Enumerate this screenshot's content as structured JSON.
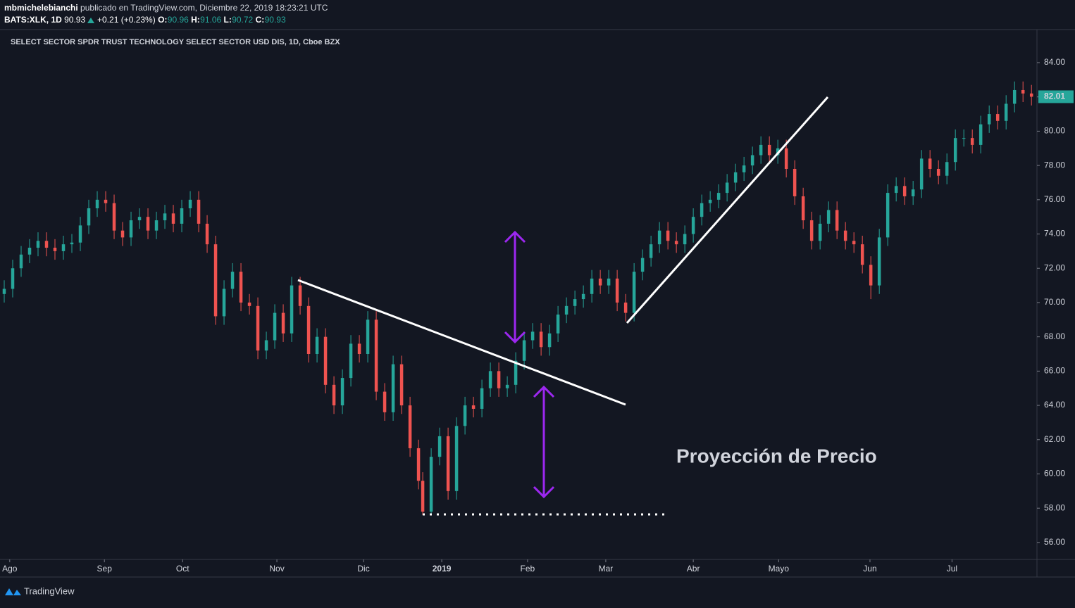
{
  "header": {
    "author": "mbmichelebianchi",
    "published": "publicado en TradingView.com, Diciembre 22, 2019 18:23:21 UTC",
    "symbol": "BATS:XLK, 1D",
    "price": "90.93",
    "change": "+0.21 (+0.23%)",
    "ohlc": [
      {
        "label": "O:",
        "value": "90.96"
      },
      {
        "label": "H:",
        "value": "91.06"
      },
      {
        "label": "L:",
        "value": "90.72"
      },
      {
        "label": "C:",
        "value": "90.93"
      }
    ]
  },
  "chart_data": {
    "type": "candlestick",
    "title": "SELECT SECTOR SPDR TRUST TECHNOLOGY SELECT SECTOR USD DIS, 1D, Cboe BZX",
    "annotation": "Proyección de Precio",
    "last_price": 82.01,
    "up_color": "#26a69a",
    "down_color": "#ef5350",
    "grid": false,
    "xlim": [
      0,
      245.3
    ],
    "xticks": [
      {
        "value": 2.3,
        "label": "Ago"
      },
      {
        "value": 24.7,
        "label": "Sep"
      },
      {
        "value": 43.2,
        "label": "Oct"
      },
      {
        "value": 65.5,
        "label": "Nov"
      },
      {
        "value": 86,
        "label": "Dic"
      },
      {
        "value": 104.5,
        "label": "2019"
      },
      {
        "value": 124.8,
        "label": "Feb"
      },
      {
        "value": 143.3,
        "label": "Mar"
      },
      {
        "value": 164,
        "label": "Abr"
      },
      {
        "value": 184.2,
        "label": "Mayo"
      },
      {
        "value": 205.8,
        "label": "Jun"
      },
      {
        "value": 225.2,
        "label": "Jul"
      }
    ],
    "ylim": [
      55.01,
      85.93
    ],
    "yticks": [
      {
        "value": 56,
        "label": "56.00"
      },
      {
        "value": 58,
        "label": "58.00"
      },
      {
        "value": 60,
        "label": "60.00"
      },
      {
        "value": 62,
        "label": "62.00"
      },
      {
        "value": 64,
        "label": "64.00"
      },
      {
        "value": 66,
        "label": "66.00"
      },
      {
        "value": 68,
        "label": "68.00"
      },
      {
        "value": 70,
        "label": "70.00"
      },
      {
        "value": 72,
        "label": "72.00"
      },
      {
        "value": 74,
        "label": "74.00"
      },
      {
        "value": 76,
        "label": "76.00"
      },
      {
        "value": 78,
        "label": "78.00"
      },
      {
        "value": 80,
        "label": "80.00"
      },
      {
        "value": 82,
        "label": "82.00"
      },
      {
        "value": 84,
        "label": "84.00"
      }
    ],
    "x": [
      1,
      3,
      5,
      7,
      9,
      11,
      13,
      15,
      17,
      19,
      21,
      23,
      25,
      27,
      29,
      31,
      33,
      35,
      37,
      39,
      41,
      43,
      45,
      47,
      49,
      51,
      53,
      55,
      57,
      59,
      61,
      63,
      65,
      67,
      69,
      71,
      73,
      75,
      77,
      79,
      81,
      83,
      85,
      87,
      89,
      91,
      93,
      95,
      97,
      99,
      100,
      102,
      104,
      106,
      108,
      110,
      112,
      114,
      116,
      118,
      120,
      122,
      124,
      126,
      128,
      130,
      132,
      134,
      136,
      138,
      140,
      142,
      144,
      146,
      148,
      150,
      152,
      154,
      156,
      158,
      160,
      162,
      164,
      166,
      168,
      170,
      172,
      174,
      176,
      178,
      180,
      182,
      184,
      186,
      188,
      190,
      192,
      194,
      196,
      198,
      200,
      202,
      204,
      206,
      208,
      210,
      212,
      214,
      216,
      218,
      220,
      222,
      224,
      226,
      228,
      230,
      232,
      234,
      236,
      238,
      240,
      242,
      244
    ],
    "open": [
      70.5,
      70.8,
      72,
      72.8,
      73.2,
      73.6,
      73.2,
      73,
      73.4,
      73.5,
      74.5,
      75.5,
      76,
      75.8,
      74.2,
      73.8,
      74.8,
      75,
      74.2,
      74.8,
      75.2,
      74.6,
      75.5,
      76,
      74.6,
      73.4,
      69.2,
      70.8,
      71.8,
      70,
      69.8,
      67.2,
      67.8,
      69.4,
      68.2,
      71,
      69.8,
      67,
      68,
      65.2,
      64,
      65.6,
      67.6,
      67,
      69,
      64.8,
      63.6,
      66.4,
      64,
      61.5,
      59.6,
      57.8,
      61,
      62.2,
      59,
      62.8,
      64,
      63.8,
      65,
      66,
      65,
      65.2,
      66.6,
      67.8,
      68.3,
      67.4,
      68.2,
      69.3,
      69.8,
      70.2,
      70.5,
      71.4,
      71,
      71.4,
      70,
      69.4,
      71.8,
      72.6,
      73.4,
      74.2,
      73.6,
      73.4,
      74,
      75,
      75.8,
      76,
      76.4,
      77,
      77.6,
      78,
      78.6,
      79.2,
      78.6,
      79,
      77.8,
      76.2,
      74.8,
      73.6,
      74.6,
      75.4,
      74.2,
      73.6,
      73.4,
      72.2,
      71,
      73.8,
      76.4,
      76.8,
      76.2,
      76.6,
      78.4,
      77.8,
      77.4,
      78.2,
      79.6,
      79.6,
      79.2,
      80.4,
      81,
      80.6,
      81.6,
      82.4,
      82.2
    ],
    "high": [
      71.3,
      72.5,
      73.3,
      73.7,
      74.1,
      74.1,
      73.7,
      73.9,
      74.0,
      75.0,
      76.0,
      76.5,
      76.5,
      76.3,
      74.7,
      75.3,
      75.5,
      75.5,
      75.3,
      75.7,
      75.7,
      76.0,
      76.5,
      76.5,
      75.1,
      73.9,
      71.3,
      72.3,
      72.3,
      70.5,
      70.3,
      68.3,
      69.9,
      69.9,
      71.5,
      71.5,
      70.3,
      68.5,
      68.5,
      65.7,
      66.1,
      68.1,
      68.1,
      69.5,
      69.5,
      65.3,
      66.9,
      66.9,
      64.5,
      62.0,
      60.1,
      61.5,
      62.7,
      62.7,
      63.3,
      64.5,
      64.5,
      65.5,
      66.5,
      66.5,
      65.7,
      67.1,
      68.3,
      68.8,
      68.8,
      68.7,
      69.8,
      70.3,
      70.7,
      71.0,
      71.9,
      71.9,
      71.9,
      71.9,
      70.5,
      72.3,
      73.1,
      73.9,
      74.7,
      74.7,
      74.1,
      74.5,
      75.5,
      76.3,
      76.5,
      76.9,
      77.5,
      78.1,
      78.5,
      79.1,
      79.7,
      79.7,
      79.5,
      79.5,
      78.3,
      76.7,
      75.3,
      75.1,
      75.9,
      75.9,
      74.7,
      74.1,
      73.9,
      72.7,
      74.3,
      76.9,
      77.3,
      77.3,
      77.1,
      78.9,
      78.9,
      78.3,
      78.7,
      80.1,
      80.1,
      80.1,
      80.9,
      81.5,
      81.5,
      82.1,
      82.9,
      82.9,
      82.7
    ],
    "low": [
      70.0,
      70.3,
      71.5,
      72.3,
      72.7,
      72.7,
      72.5,
      72.5,
      72.9,
      73.0,
      74.0,
      75.0,
      75.3,
      73.7,
      73.3,
      73.3,
      74.3,
      73.7,
      73.7,
      74.3,
      74.1,
      74.1,
      75.0,
      74.1,
      72.9,
      68.7,
      68.7,
      70.3,
      69.5,
      69.3,
      66.7,
      66.7,
      67.3,
      67.7,
      67.7,
      69.3,
      66.5,
      66.5,
      64.7,
      63.5,
      63.5,
      65.1,
      66.5,
      66.5,
      64.3,
      63.1,
      63.1,
      63.5,
      61.0,
      59.1,
      57.6,
      57.6,
      60.5,
      58.5,
      58.5,
      62.3,
      63.3,
      63.3,
      64.5,
      64.5,
      64.5,
      64.7,
      66.1,
      67.3,
      66.9,
      66.9,
      67.7,
      68.8,
      69.3,
      69.7,
      70.0,
      70.5,
      70.5,
      69.5,
      68.9,
      68.9,
      71.3,
      72.1,
      72.9,
      73.1,
      72.9,
      72.9,
      73.5,
      74.5,
      75.3,
      75.5,
      75.9,
      76.5,
      77.1,
      77.5,
      78.1,
      78.1,
      78.1,
      77.3,
      75.7,
      74.3,
      73.1,
      73.1,
      74.1,
      73.7,
      73.1,
      72.9,
      71.7,
      70.2,
      70.5,
      73.3,
      75.9,
      75.7,
      75.7,
      76.1,
      77.3,
      76.9,
      76.9,
      77.7,
      79.1,
      78.7,
      78.7,
      79.9,
      80.1,
      80.1,
      81.1,
      81.7,
      81.5
    ],
    "close": [
      70.8,
      72,
      72.8,
      73.2,
      73.6,
      73.2,
      73,
      73.4,
      73.5,
      74.5,
      75.5,
      76,
      75.8,
      74.2,
      73.8,
      74.8,
      75,
      74.2,
      74.8,
      75.2,
      74.6,
      75.5,
      76,
      74.6,
      73.4,
      69.2,
      70.8,
      71.8,
      70,
      69.8,
      67.2,
      67.8,
      69.4,
      68.2,
      71,
      69.8,
      67,
      68,
      65.2,
      64,
      65.6,
      67.6,
      67,
      69,
      64.8,
      63.6,
      66.4,
      64,
      61.5,
      59.6,
      57.8,
      61,
      62.2,
      59,
      62.8,
      64,
      63.8,
      65,
      66,
      65,
      65.2,
      66.6,
      67.8,
      68.3,
      67.4,
      68.2,
      69.3,
      69.8,
      70.2,
      70.5,
      71.4,
      71,
      71.4,
      70,
      69.4,
      71.8,
      72.6,
      73.4,
      74.2,
      73.6,
      73.4,
      74,
      75,
      75.8,
      76,
      76.4,
      77,
      77.6,
      78,
      78.6,
      79.2,
      78.6,
      79,
      77.8,
      76.2,
      74.8,
      73.6,
      74.6,
      75.4,
      74.2,
      73.6,
      73.4,
      72.2,
      71,
      73.8,
      76.4,
      76.8,
      76.2,
      76.6,
      78.4,
      77.8,
      77.4,
      78.2,
      79.6,
      79.6,
      79.2,
      80.4,
      81,
      80.6,
      81.6,
      82.4,
      82.2,
      82.01
    ]
  },
  "footer": {
    "brand": "TradingView"
  }
}
